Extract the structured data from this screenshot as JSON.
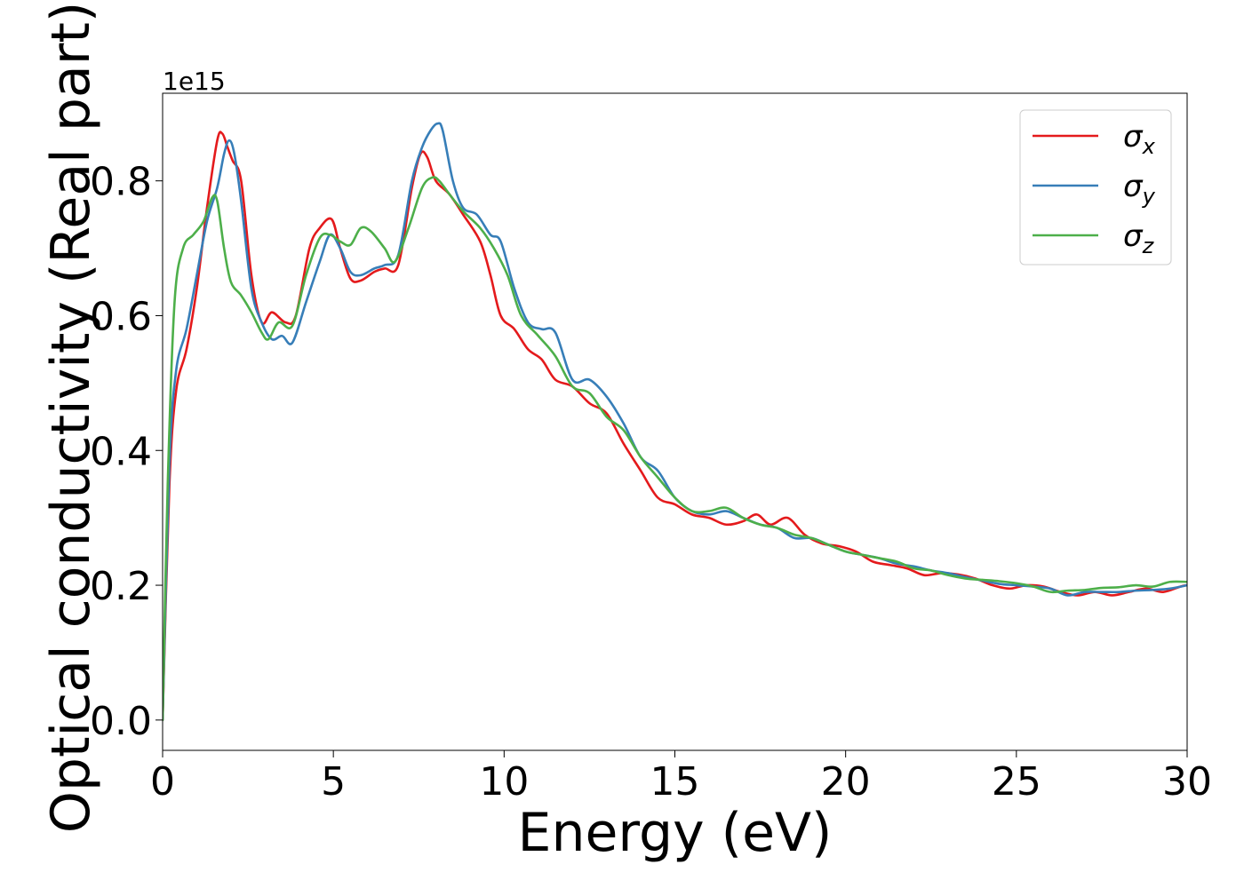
{
  "chart_data": {
    "type": "line",
    "xlabel": "Energy (eV)",
    "ylabel": "Optical conductivity (Real part)",
    "y_offset_label": "1e15",
    "xlim": [
      0,
      30
    ],
    "ylim": [
      -0.045,
      0.93
    ],
    "xticks": [
      0,
      5,
      10,
      15,
      20,
      25,
      30
    ],
    "xtick_labels": [
      "0",
      "5",
      "10",
      "15",
      "20",
      "25",
      "30"
    ],
    "yticks": [
      0.0,
      0.2,
      0.4,
      0.6,
      0.8
    ],
    "ytick_labels": [
      "0.0",
      "0.2",
      "0.4",
      "0.6",
      "0.8"
    ],
    "legend": {
      "placement": "top-right"
    },
    "grid": false,
    "series": [
      {
        "name": "σx",
        "symbol": "σ",
        "subscript": "x",
        "color": "#e41a1c",
        "x": [
          0,
          0.2,
          0.4,
          0.7,
          1.0,
          1.3,
          1.6,
          1.75,
          1.9,
          2.05,
          2.3,
          2.6,
          2.9,
          3.2,
          3.6,
          3.9,
          4.3,
          4.6,
          4.95,
          5.2,
          5.5,
          5.8,
          6.2,
          6.5,
          6.9,
          7.3,
          7.55,
          7.75,
          8.0,
          8.4,
          8.8,
          9.3,
          9.6,
          9.9,
          10.3,
          10.7,
          11.1,
          11.5,
          12.0,
          12.5,
          13.0,
          13.5,
          14.0,
          14.5,
          15.0,
          15.5,
          16.0,
          16.5,
          17.0,
          17.4,
          17.8,
          18.3,
          18.8,
          19.3,
          19.8,
          20.3,
          20.8,
          21.3,
          21.8,
          22.3,
          22.8,
          23.3,
          23.8,
          24.3,
          24.8,
          25.3,
          25.8,
          26.3,
          26.8,
          27.3,
          27.8,
          28.3,
          28.8,
          29.3,
          29.8,
          30.0
        ],
        "y": [
          0.0,
          0.35,
          0.49,
          0.55,
          0.64,
          0.76,
          0.86,
          0.87,
          0.85,
          0.83,
          0.8,
          0.66,
          0.59,
          0.605,
          0.59,
          0.6,
          0.7,
          0.73,
          0.743,
          0.7,
          0.655,
          0.652,
          0.665,
          0.67,
          0.675,
          0.79,
          0.84,
          0.835,
          0.8,
          0.78,
          0.75,
          0.71,
          0.66,
          0.6,
          0.58,
          0.55,
          0.535,
          0.505,
          0.495,
          0.47,
          0.455,
          0.41,
          0.37,
          0.33,
          0.32,
          0.305,
          0.3,
          0.29,
          0.295,
          0.305,
          0.29,
          0.3,
          0.275,
          0.262,
          0.258,
          0.25,
          0.235,
          0.23,
          0.225,
          0.215,
          0.218,
          0.216,
          0.21,
          0.2,
          0.195,
          0.2,
          0.198,
          0.19,
          0.185,
          0.19,
          0.185,
          0.19,
          0.195,
          0.19,
          0.198,
          0.2
        ]
      },
      {
        "name": "σy",
        "symbol": "σ",
        "subscript": "y",
        "color": "#377eb8",
        "x": [
          0,
          0.2,
          0.4,
          0.7,
          1.0,
          1.3,
          1.6,
          1.8,
          1.95,
          2.1,
          2.3,
          2.6,
          2.9,
          3.2,
          3.5,
          3.8,
          4.2,
          4.6,
          4.9,
          5.2,
          5.5,
          5.8,
          6.2,
          6.5,
          6.9,
          7.3,
          7.6,
          7.85,
          8.05,
          8.2,
          8.5,
          8.8,
          9.2,
          9.6,
          9.9,
          10.3,
          10.7,
          11.1,
          11.5,
          12.0,
          12.5,
          13.0,
          13.5,
          14.0,
          14.5,
          15.0,
          15.5,
          16.0,
          16.5,
          17.0,
          17.5,
          18.0,
          18.5,
          19.0,
          19.5,
          20.0,
          20.5,
          21.0,
          21.5,
          22.0,
          22.5,
          23.0,
          23.5,
          24.0,
          24.5,
          25.0,
          25.5,
          26.0,
          26.5,
          27.0,
          27.5,
          28.0,
          28.5,
          29.0,
          29.5,
          30.0
        ],
        "y": [
          0.0,
          0.38,
          0.52,
          0.58,
          0.66,
          0.74,
          0.79,
          0.84,
          0.86,
          0.84,
          0.77,
          0.64,
          0.59,
          0.565,
          0.57,
          0.56,
          0.62,
          0.68,
          0.72,
          0.7,
          0.665,
          0.66,
          0.67,
          0.675,
          0.69,
          0.8,
          0.85,
          0.875,
          0.885,
          0.875,
          0.8,
          0.76,
          0.75,
          0.72,
          0.71,
          0.64,
          0.59,
          0.58,
          0.575,
          0.505,
          0.505,
          0.48,
          0.44,
          0.39,
          0.37,
          0.33,
          0.31,
          0.305,
          0.31,
          0.3,
          0.29,
          0.285,
          0.27,
          0.27,
          0.26,
          0.25,
          0.245,
          0.24,
          0.232,
          0.228,
          0.222,
          0.218,
          0.212,
          0.207,
          0.202,
          0.2,
          0.198,
          0.195,
          0.185,
          0.19,
          0.19,
          0.19,
          0.192,
          0.193,
          0.195,
          0.2
        ]
      },
      {
        "name": "σz",
        "symbol": "σ",
        "subscript": "z",
        "color": "#4daf4a",
        "x": [
          0,
          0.15,
          0.35,
          0.6,
          0.9,
          1.2,
          1.45,
          1.6,
          1.8,
          2.0,
          2.3,
          2.6,
          2.9,
          3.1,
          3.4,
          3.8,
          4.2,
          4.6,
          4.9,
          5.2,
          5.5,
          5.8,
          6.1,
          6.5,
          6.8,
          7.2,
          7.6,
          7.9,
          8.1,
          8.4,
          8.8,
          9.3,
          9.7,
          10.1,
          10.5,
          11.0,
          11.5,
          12.0,
          12.5,
          13.0,
          13.5,
          14.0,
          14.5,
          15.0,
          15.5,
          16.0,
          16.5,
          17.0,
          17.5,
          18.0,
          18.5,
          19.0,
          19.5,
          20.0,
          20.5,
          21.0,
          21.5,
          22.0,
          22.5,
          23.0,
          23.5,
          24.0,
          24.5,
          25.0,
          25.5,
          26.0,
          26.5,
          27.0,
          27.5,
          28.0,
          28.5,
          29.0,
          29.5,
          30.0
        ],
        "y": [
          0.0,
          0.35,
          0.62,
          0.7,
          0.72,
          0.74,
          0.775,
          0.77,
          0.7,
          0.65,
          0.63,
          0.605,
          0.575,
          0.565,
          0.59,
          0.585,
          0.66,
          0.715,
          0.72,
          0.71,
          0.705,
          0.73,
          0.725,
          0.7,
          0.68,
          0.73,
          0.79,
          0.805,
          0.8,
          0.78,
          0.755,
          0.73,
          0.7,
          0.66,
          0.6,
          0.57,
          0.54,
          0.495,
          0.485,
          0.45,
          0.43,
          0.39,
          0.36,
          0.33,
          0.31,
          0.31,
          0.315,
          0.3,
          0.29,
          0.285,
          0.275,
          0.27,
          0.26,
          0.25,
          0.245,
          0.24,
          0.235,
          0.225,
          0.222,
          0.215,
          0.21,
          0.208,
          0.206,
          0.203,
          0.198,
          0.19,
          0.192,
          0.193,
          0.196,
          0.197,
          0.2,
          0.198,
          0.205,
          0.205
        ]
      }
    ]
  }
}
